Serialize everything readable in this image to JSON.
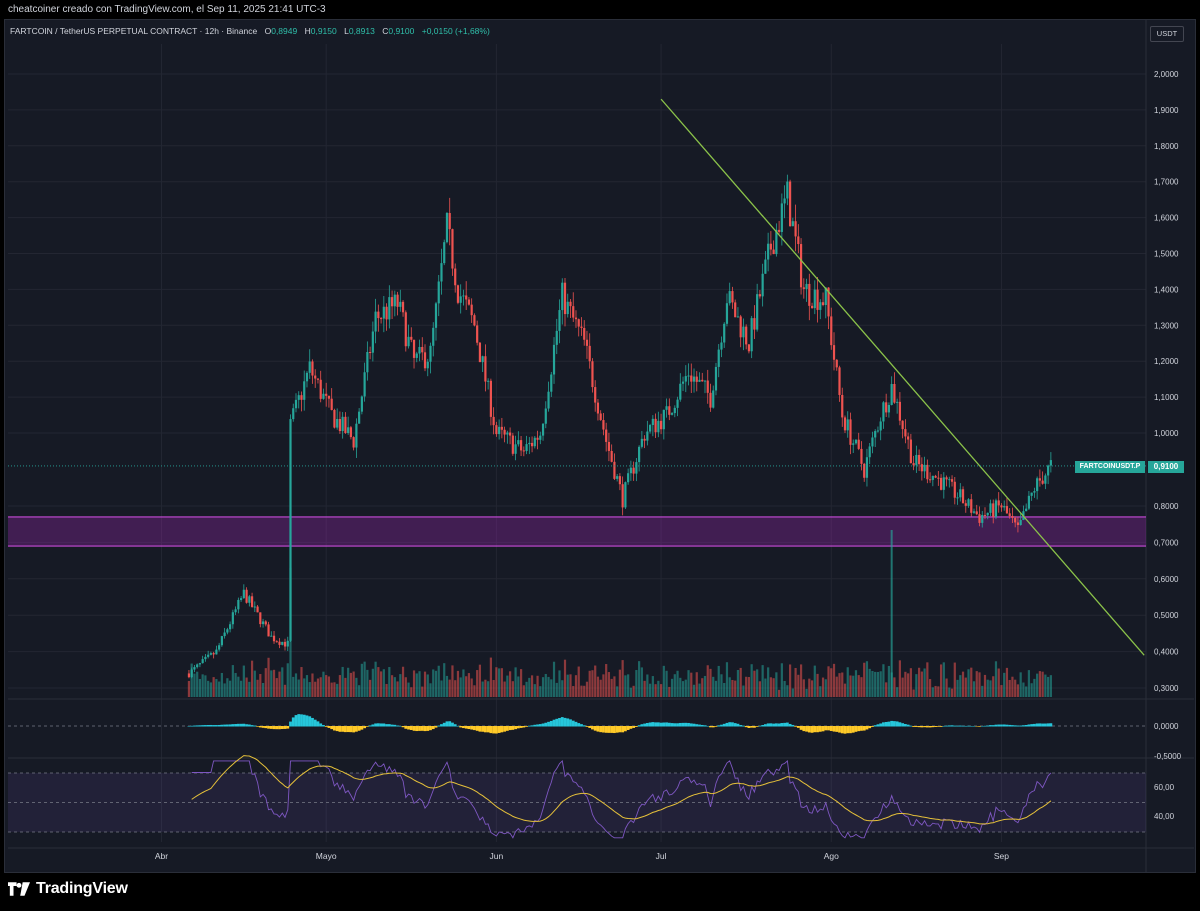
{
  "caption": "cheatcoiner creado con TradingView.com, el Sep 11, 2025 21:41 UTC-3",
  "legend": {
    "symbol": "FARTCOIN / TetherUS PERPETUAL CONTRACT · 12h · Binance",
    "o_label": "O",
    "o_value": "0,8949",
    "h_label": "H",
    "h_value": "0,9150",
    "l_label": "L",
    "l_value": "0,8913",
    "c_label": "C",
    "c_value": "0,9100",
    "change": "+0,0150 (+1,68%)"
  },
  "currency": "USDT",
  "last_price": {
    "symbol_tag": "FARTCOINUSDT.P",
    "value": "0,9100"
  },
  "price_axis": {
    "ticks": [
      "2,0000",
      "1,9000",
      "1,8000",
      "1,7000",
      "1,6000",
      "1,5000",
      "1,4000",
      "1,3000",
      "1,2000",
      "1,1000",
      "1,0000",
      "0,8000",
      "0,7000",
      "0,6000",
      "0,5000",
      "0,4000",
      "0,3000"
    ]
  },
  "macd_axis": {
    "ticks": [
      "0,0000",
      "-0,5000"
    ]
  },
  "rsi_axis": {
    "ticks": [
      "60,00",
      "40,00"
    ]
  },
  "time_axis": {
    "labels": [
      "Abr",
      "Mayo",
      "Jun",
      "Jul",
      "Ago",
      "Sep"
    ]
  },
  "zone": {
    "top": 0.77,
    "bottom": 0.69,
    "color": "#9c27b0"
  },
  "trendline": {
    "start": {
      "date": "Jul 1",
      "price": 1.93
    },
    "end": {
      "date": "Sep 27",
      "price": 0.39
    },
    "color": "#8bc34a"
  },
  "colors": {
    "up": "#26a69a",
    "down": "#ef5350",
    "background": "#161a25",
    "grid": "#232632",
    "rsi": "#7e57c2",
    "rsi_ma": "#e6c13a",
    "macd_pos": "#26c6da",
    "macd_neg": "#ffca28"
  },
  "chart_data": {
    "type": "candlestick",
    "timeframe": "12h",
    "ylim": [
      0.28,
      2.05
    ],
    "price_path": {
      "x": [
        "Mar 10",
        "Mar 15",
        "Mar 20",
        "Mar 25",
        "Mar 28",
        "Apr 1",
        "Apr 5",
        "Apr 9",
        "Apr 13",
        "Apr 16",
        "Apr 20",
        "Apr 24",
        "Apr 28",
        "May 2",
        "May 6",
        "May 10",
        "May 14",
        "May 17",
        "May 20",
        "May 23",
        "May 25",
        "May 28",
        "Jun 1",
        "Jun 6",
        "Jun 9",
        "Jun 13",
        "Jun 17",
        "Jun 21",
        "Jun 24",
        "Jun 28",
        "Jul 2",
        "Jul 6",
        "Jul 10",
        "Jul 13",
        "Jul 17",
        "Jul 21",
        "Jul 24",
        "Jul 27",
        "Jul 31",
        "Aug 3",
        "Aug 7",
        "Aug 10",
        "Aug 12",
        "Aug 16",
        "Aug 20",
        "Aug 24",
        "Aug 28",
        "Sep 1",
        "Sep 4",
        "Sep 7",
        "Sep 10"
      ],
      "close": [
        0.34,
        0.4,
        0.56,
        0.44,
        0.42,
        0.48,
        0.87,
        0.84,
        0.74,
        1.05,
        1.12,
        1.0,
        1.18,
        1.05,
        0.98,
        1.32,
        1.36,
        1.2,
        1.22,
        1.57,
        1.4,
        1.3,
        1.0,
        0.95,
        1.0,
        1.38,
        1.25,
        0.98,
        0.82,
        1.0,
        1.05,
        1.17,
        1.1,
        1.38,
        1.25,
        1.52,
        1.66,
        1.4,
        1.37,
        1.05,
        0.9,
        1.05,
        1.13,
        0.92,
        0.88,
        0.83,
        0.77,
        0.8,
        0.73,
        0.85,
        0.91
      ]
    },
    "support_zone": [
      0.69,
      0.77
    ],
    "volume": "histogram below price",
    "indicators": [
      "MACD histogram",
      "RSI with moving average"
    ],
    "x_labels": [
      "Abr",
      "Mayo",
      "Jun",
      "Jul",
      "Ago",
      "Sep"
    ]
  }
}
